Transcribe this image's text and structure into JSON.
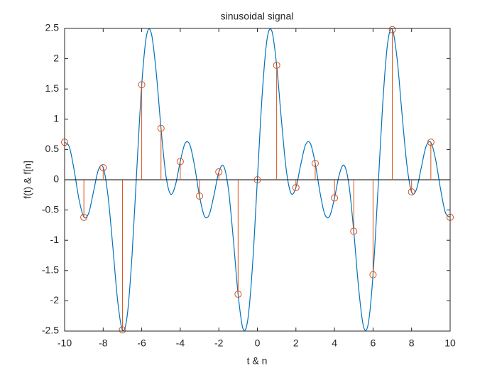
{
  "chart_data": {
    "type": "line",
    "title": "sinusoidal signal",
    "x_label": "t & n",
    "y_label": "f(t) & f[n]",
    "xlim": [
      -10,
      10
    ],
    "xticks": [
      -10,
      -8,
      -6,
      -4,
      -2,
      0,
      2,
      4,
      6,
      8,
      10
    ],
    "ylim": [
      -2.5,
      2.5
    ],
    "yticks": [
      -2.5,
      -2,
      -1.5,
      -1,
      -0.5,
      0,
      0.5,
      1,
      1.5,
      2,
      2.5
    ],
    "grid": false,
    "box": true,
    "series": [
      {
        "type": "line",
        "color": "#0072bd",
        "x": [
          -10,
          -9.75,
          -9.5,
          -9.25,
          -9,
          -8.75,
          -8.5,
          -8.25,
          -8,
          -7.75,
          -7.5,
          -7.25,
          -7,
          -6.75,
          -6.5,
          -6.25,
          -6,
          -5.75,
          -5.5,
          -5.25,
          -5,
          -4.75,
          -4.5,
          -4.25,
          -4,
          -3.75,
          -3.5,
          -3.25,
          -3,
          -2.75,
          -2.5,
          -2.25,
          -2,
          -1.75,
          -1.5,
          -1.25,
          -1,
          -0.75,
          -0.5,
          -0.25,
          0,
          0.25,
          0.5,
          0.75,
          1,
          1.25,
          1.5,
          1.75,
          2,
          2.25,
          2.5,
          2.75,
          3,
          3.25,
          3.5,
          3.75,
          4,
          4.25,
          4.5,
          4.75,
          5,
          5.25,
          5.5,
          5.75,
          6,
          6.25,
          6.5,
          6.75,
          7,
          7.25,
          7.5,
          7.75,
          8,
          8.25,
          8.5,
          8.75,
          9,
          9.25,
          9.5,
          9.75,
          10
        ],
        "values": [
          0.619,
          0.538,
          0.149,
          -0.329,
          -0.617,
          -0.55,
          -0.196,
          0.161,
          0.204,
          -0.263,
          -1.101,
          -1.994,
          -2.484,
          -2.239,
          -1.241,
          0.199,
          1.567,
          2.383,
          2.417,
          1.781,
          0.853,
          0.081,
          -0.238,
          -0.086,
          0.304,
          0.601,
          0.574,
          0.213,
          -0.274,
          -0.599,
          -0.578,
          -0.251,
          0.127,
          0.226,
          -0.161,
          -0.976,
          -1.892,
          -2.457,
          -2.318,
          -1.408,
          0,
          1.408,
          2.318,
          2.457,
          1.892,
          0.976,
          0.161,
          -0.226,
          -0.127,
          0.251,
          0.578,
          0.599,
          0.274,
          -0.213,
          -0.574,
          -0.601,
          -0.304,
          0.086,
          0.238,
          -0.081,
          -0.853,
          -1.781,
          -2.417,
          -2.383,
          -1.567,
          -0.199,
          1.241,
          2.239,
          2.484,
          1.994,
          1.101,
          0.263,
          -0.204,
          -0.161,
          0.196,
          0.55,
          0.617,
          0.329,
          -0.149,
          -0.538,
          -0.619
        ]
      },
      {
        "type": "stem",
        "color": "#d95319",
        "x": [
          -10,
          -9,
          -8,
          -7,
          -6,
          -5,
          -4,
          -3,
          -2,
          -1,
          0,
          1,
          2,
          3,
          4,
          5,
          6,
          7,
          8,
          9,
          10
        ],
        "values": [
          0.62,
          -0.62,
          0.2,
          -2.48,
          1.57,
          0.85,
          0.3,
          -0.27,
          0.13,
          -1.89,
          0,
          1.89,
          -0.13,
          0.27,
          -0.3,
          -0.85,
          -1.57,
          2.48,
          -0.2,
          0.62,
          -0.62
        ]
      }
    ]
  }
}
